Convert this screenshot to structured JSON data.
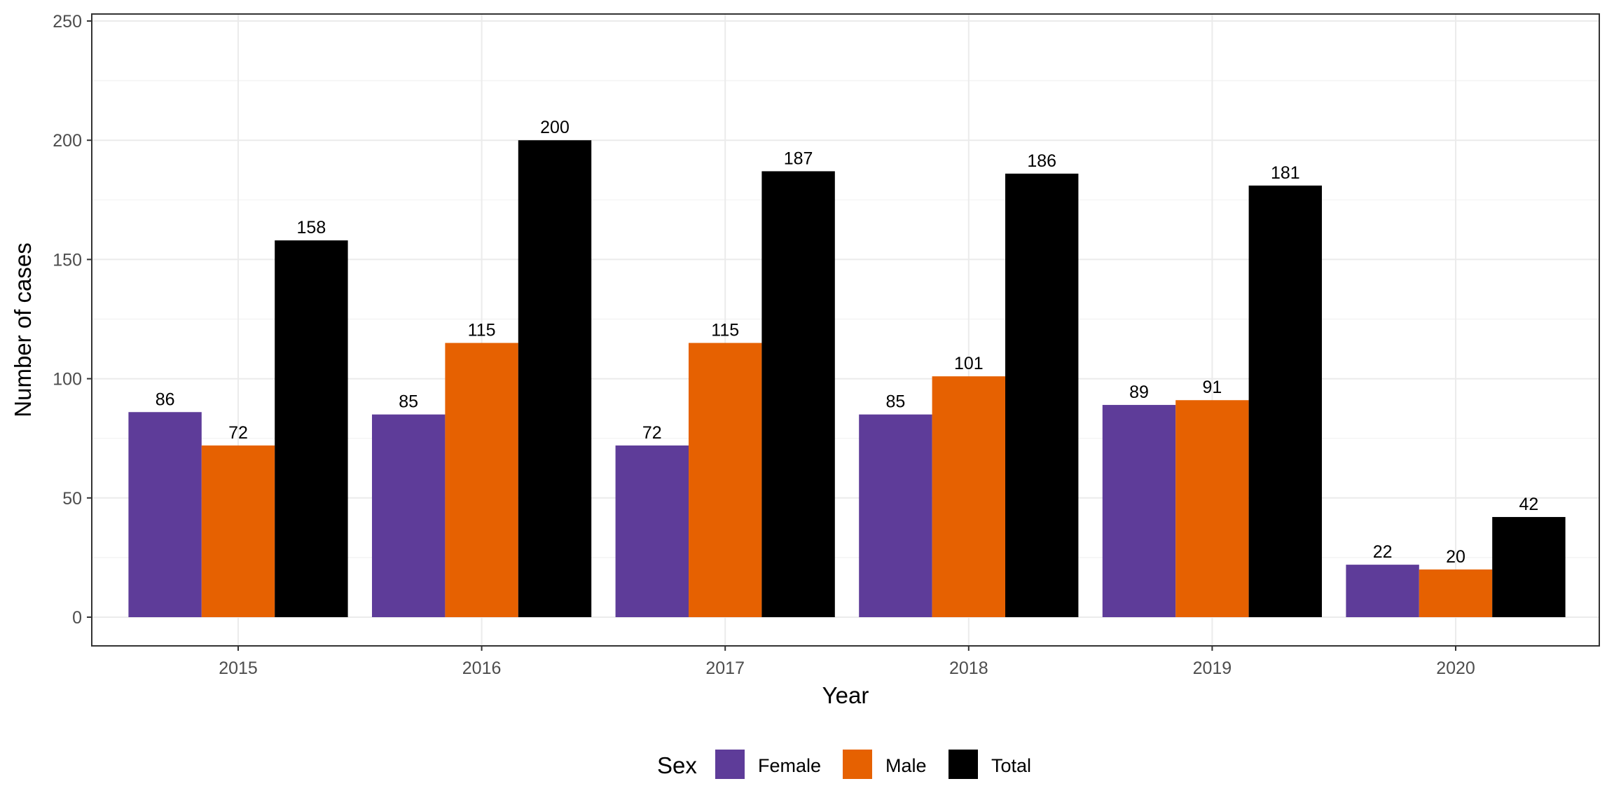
{
  "chart_data": {
    "type": "bar",
    "xlabel": "Year",
    "ylabel": "Number of cases",
    "categories": [
      "2015",
      "2016",
      "2017",
      "2018",
      "2019",
      "2020"
    ],
    "series": [
      {
        "name": "Female",
        "color": "#5e3c99",
        "values": [
          86,
          85,
          72,
          85,
          89,
          22
        ]
      },
      {
        "name": "Male",
        "color": "#e66101",
        "values": [
          72,
          115,
          115,
          101,
          91,
          20
        ]
      },
      {
        "name": "Total",
        "color": "#000000",
        "values": [
          158,
          200,
          187,
          186,
          181,
          42
        ]
      }
    ],
    "ylim": [
      0,
      250
    ],
    "yticks": [
      "0",
      "50",
      "100",
      "150",
      "200",
      "250"
    ],
    "legend": {
      "title": "Sex",
      "position": "bottom"
    },
    "grid": true
  }
}
